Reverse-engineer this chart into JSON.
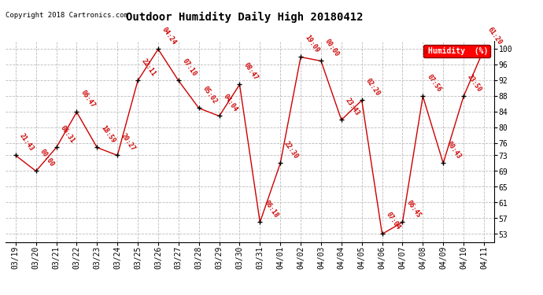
{
  "title": "Outdoor Humidity Daily High 20180412",
  "copyright": "Copyright 2018 Cartronics.com",
  "legend_label": "Humidity  (%)",
  "background_color": "#ffffff",
  "plot_bg_color": "#ffffff",
  "grid_color": "#bbbbbb",
  "line_color": "#cc0000",
  "marker_color": "#000000",
  "label_color": "#cc0000",
  "ylim": [
    51,
    102
  ],
  "yticks": [
    53,
    57,
    61,
    65,
    69,
    73,
    76,
    80,
    84,
    88,
    92,
    96,
    100
  ],
  "dates": [
    "03/19",
    "03/20",
    "03/21",
    "03/22",
    "03/23",
    "03/24",
    "03/25",
    "03/26",
    "03/27",
    "03/28",
    "03/29",
    "03/30",
    "03/31",
    "04/01",
    "04/02",
    "04/03",
    "04/04",
    "04/05",
    "04/06",
    "04/07",
    "04/08",
    "04/09",
    "04/10",
    "04/11"
  ],
  "values": [
    73,
    69,
    75,
    84,
    75,
    73,
    92,
    100,
    92,
    85,
    83,
    91,
    56,
    71,
    98,
    97,
    82,
    87,
    53,
    56,
    88,
    71,
    88,
    100
  ],
  "time_labels": [
    "21:43",
    "00:00",
    "06:31",
    "06:47",
    "18:59",
    "20:27",
    "22:11",
    "04:24",
    "07:10",
    "05:02",
    "04:04",
    "08:47",
    "06:18",
    "22:30",
    "19:09",
    "00:00",
    "23:43",
    "02:20",
    "07:04",
    "06:45",
    "07:56",
    "00:43",
    "23:50",
    "61:20"
  ],
  "label_rotation": -55,
  "label_fontsize": 6.0,
  "title_fontsize": 10,
  "tick_fontsize": 7
}
